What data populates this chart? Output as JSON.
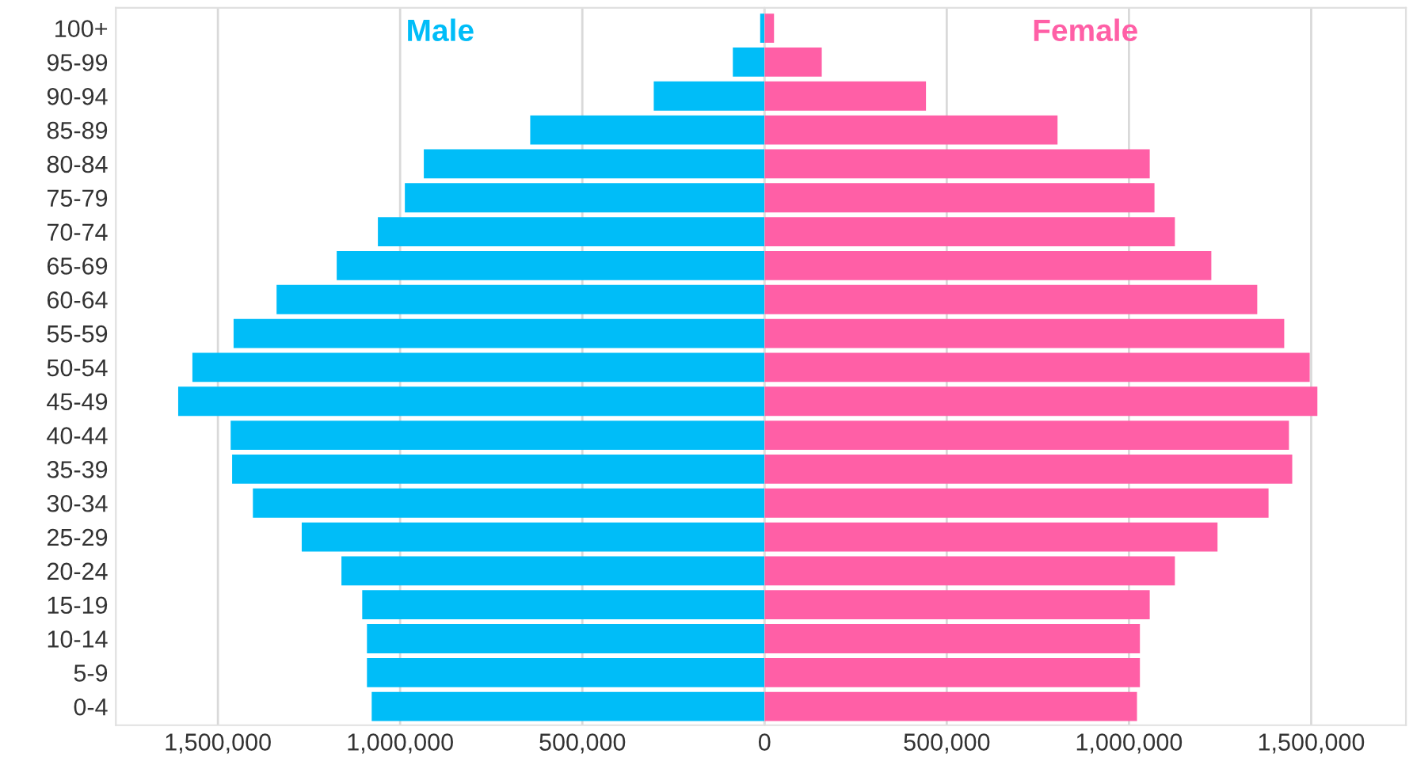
{
  "chart_data": [
    {
      "type": "bar",
      "orientation": "horizontal",
      "categories": [
        "100+",
        "95-99",
        "90-94",
        "85-89",
        "80-84",
        "75-79",
        "70-74",
        "65-69",
        "60-64",
        "55-59",
        "50-54",
        "45-49",
        "40-44",
        "35-39",
        "30-34",
        "25-29",
        "20-24",
        "15-19",
        "10-14",
        "5-9",
        "0-4"
      ],
      "series": [
        {
          "name": "Male",
          "color": "#00bdf8",
          "values": [
            12000,
            87000,
            304000,
            643000,
            935000,
            987000,
            1061000,
            1174000,
            1339000,
            1457000,
            1570000,
            1609000,
            1465000,
            1461000,
            1404000,
            1270000,
            1161000,
            1104000,
            1091000,
            1091000,
            1078000
          ]
        }
      ],
      "xlim": [
        1780000,
        0
      ],
      "xticks": [
        {
          "value": 1500000,
          "label": "1,500,000"
        },
        {
          "value": 1000000,
          "label": "1,000,000"
        },
        {
          "value": 500000,
          "label": "500,000"
        },
        0
      ],
      "grid": "x"
    },
    {
      "type": "bar",
      "orientation": "horizontal",
      "categories": [
        null,
        null,
        null,
        null,
        null,
        null,
        null,
        null,
        null,
        null,
        null,
        null,
        null,
        null,
        null,
        null,
        null,
        null,
        null,
        null,
        null
      ],
      "series": [
        {
          "name": "Female",
          "color": "#ff5fa6",
          "values": [
            26000,
            157000,
            443000,
            804000,
            1057000,
            1070000,
            1126000,
            1226000,
            1352000,
            1426000,
            1496000,
            1517000,
            1439000,
            1448000,
            1383000,
            1243000,
            1126000,
            1057000,
            1030000,
            1030000,
            1022000
          ]
        }
      ],
      "xlim": [
        0,
        1760000
      ],
      "xticks": [
        {
          "value": 0,
          "label": null
        },
        {
          "value": 500000,
          "label": "500,000"
        },
        {
          "value": 1000000,
          "label": "1,000,000"
        },
        {
          "value": 1500000,
          "label": "1,500,000"
        }
      ],
      "tick_labels": "x",
      "grid": "x"
    }
  ]
}
